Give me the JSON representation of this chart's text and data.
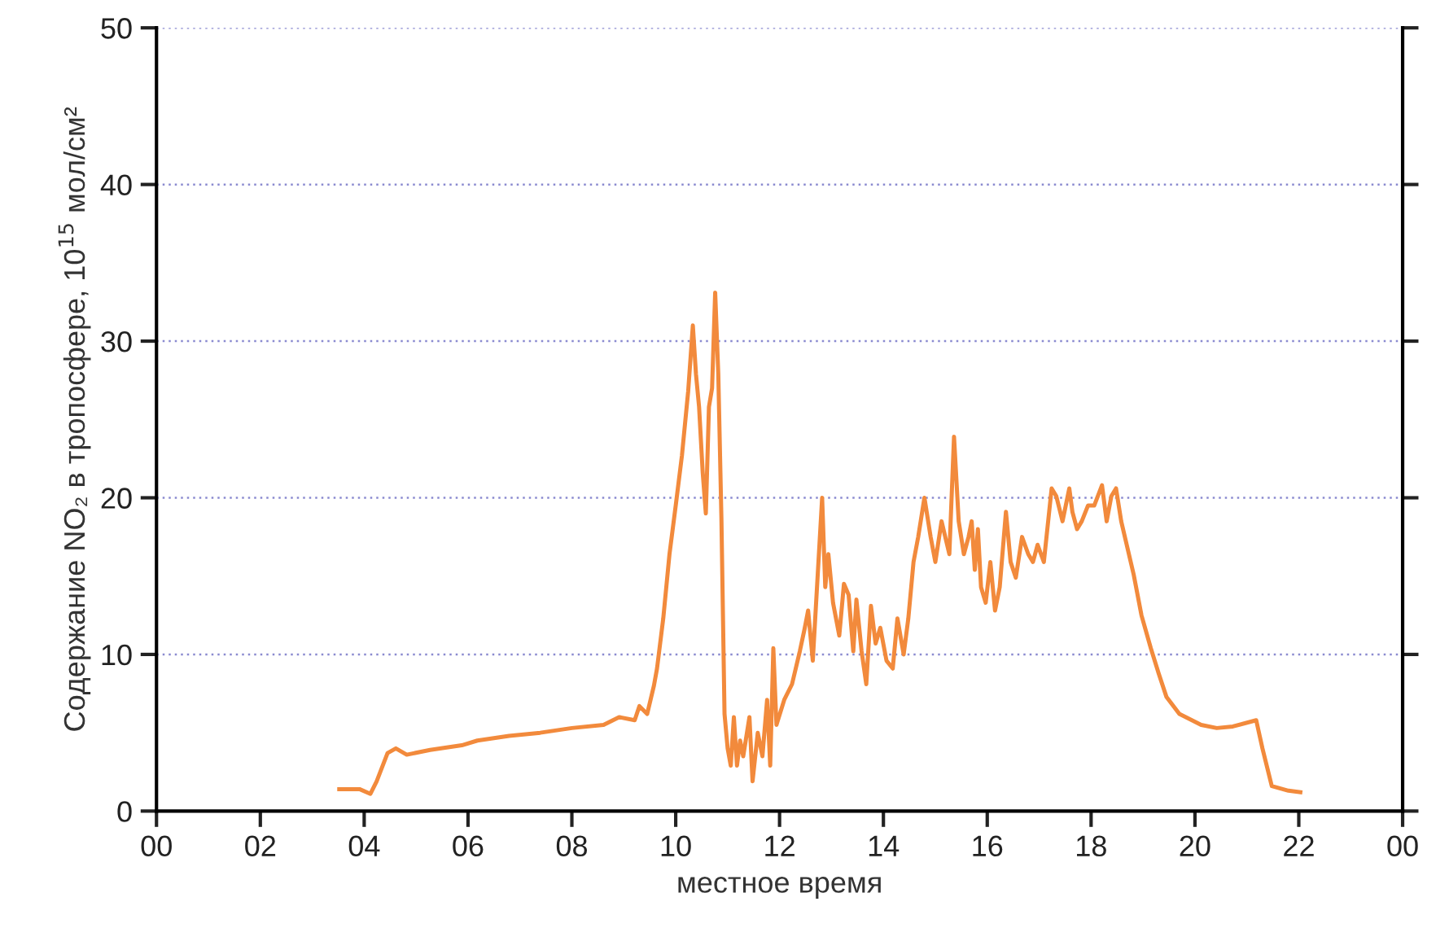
{
  "chart_data": {
    "type": "line",
    "xlabel": "местное время",
    "ylabel": "Содержание NO₂ в тропосфере, 10$^{15}$ мол/см²",
    "xlim": [
      0,
      24
    ],
    "ylim": [
      0,
      50
    ],
    "yticks": [
      0,
      10,
      20,
      30,
      40,
      50
    ],
    "xticks": [
      {
        "value": 0,
        "label": "00"
      },
      {
        "value": 2,
        "label": "02"
      },
      {
        "value": 4,
        "label": "04"
      },
      {
        "value": 6,
        "label": "06"
      },
      {
        "value": 8,
        "label": "08"
      },
      {
        "value": 10,
        "label": "10"
      },
      {
        "value": 12,
        "label": "12"
      },
      {
        "value": 14,
        "label": "14"
      },
      {
        "value": 16,
        "label": "16"
      },
      {
        "value": 18,
        "label": "18"
      },
      {
        "value": 20,
        "label": "20"
      },
      {
        "value": 22,
        "label": "22"
      },
      {
        "value": 24,
        "label": "00"
      }
    ],
    "grid": "y",
    "legend": false,
    "marker": "none",
    "line_style": "solid",
    "series": [
      {
        "color": "#f28a3c",
        "x": [
          3.52,
          3.91,
          4.12,
          4.24,
          4.45,
          4.61,
          4.82,
          5.27,
          5.88,
          6.18,
          6.79,
          7.39,
          8.0,
          8.61,
          8.91,
          9.21,
          9.3,
          9.45,
          9.58,
          9.64,
          9.76,
          9.88,
          10.0,
          10.12,
          10.24,
          10.33,
          10.39,
          10.45,
          10.52,
          10.58,
          10.64,
          10.7,
          10.76,
          10.82,
          10.88,
          10.94,
          11.0,
          11.06,
          11.12,
          11.18,
          11.24,
          11.3,
          11.42,
          11.48,
          11.58,
          11.67,
          11.76,
          11.82,
          11.88,
          11.94,
          12.09,
          12.24,
          12.39,
          12.48,
          12.55,
          12.64,
          12.82,
          12.88,
          12.94,
          13.03,
          13.15,
          13.24,
          13.33,
          13.42,
          13.48,
          13.58,
          13.67,
          13.76,
          13.85,
          13.94,
          14.06,
          14.18,
          14.27,
          14.39,
          14.48,
          14.58,
          14.67,
          14.79,
          14.91,
          15.0,
          15.12,
          15.27,
          15.36,
          15.45,
          15.55,
          15.64,
          15.7,
          15.76,
          15.82,
          15.88,
          15.97,
          16.06,
          16.15,
          16.24,
          16.36,
          16.45,
          16.55,
          16.67,
          16.79,
          16.88,
          16.97,
          17.09,
          17.24,
          17.33,
          17.45,
          17.58,
          17.64,
          17.73,
          17.82,
          17.94,
          18.06,
          18.21,
          18.3,
          18.39,
          18.48,
          18.58,
          18.82,
          18.97,
          19.15,
          19.3,
          19.45,
          19.7,
          20.12,
          20.42,
          20.73,
          21.18,
          21.3,
          21.48,
          21.8,
          22.03
        ],
        "values": [
          1.4,
          1.4,
          1.1,
          1.9,
          3.7,
          4.0,
          3.6,
          3.9,
          4.2,
          4.5,
          4.8,
          5.0,
          5.3,
          5.5,
          6.0,
          5.8,
          6.7,
          6.2,
          8.0,
          9.1,
          12.3,
          16.4,
          19.5,
          22.7,
          26.8,
          31.0,
          27.9,
          25.8,
          21.6,
          19.0,
          25.8,
          27.0,
          33.1,
          27.9,
          18.7,
          6.2,
          4.0,
          2.9,
          6.0,
          2.9,
          4.5,
          3.5,
          6.0,
          1.9,
          5.0,
          3.5,
          7.1,
          2.9,
          10.4,
          5.5,
          7.1,
          8.1,
          10.2,
          11.6,
          12.8,
          9.6,
          20.0,
          14.3,
          16.4,
          13.3,
          11.2,
          14.5,
          13.8,
          10.2,
          13.5,
          10.2,
          8.1,
          13.1,
          10.7,
          11.7,
          9.6,
          9.1,
          12.3,
          10.0,
          12.3,
          15.9,
          17.5,
          20.0,
          17.5,
          15.9,
          18.5,
          16.4,
          23.9,
          18.5,
          16.4,
          17.5,
          18.5,
          15.4,
          18.0,
          14.3,
          13.3,
          15.9,
          12.8,
          14.3,
          19.1,
          15.9,
          14.9,
          17.5,
          16.4,
          15.9,
          17.0,
          15.9,
          20.6,
          20.1,
          18.5,
          20.6,
          19.1,
          18.0,
          18.5,
          19.5,
          19.5,
          20.8,
          18.5,
          20.1,
          20.6,
          18.5,
          15.1,
          12.5,
          10.4,
          8.8,
          7.3,
          6.2,
          5.5,
          5.3,
          5.4,
          5.8,
          4.0,
          1.6,
          1.3,
          1.2
        ]
      }
    ]
  }
}
